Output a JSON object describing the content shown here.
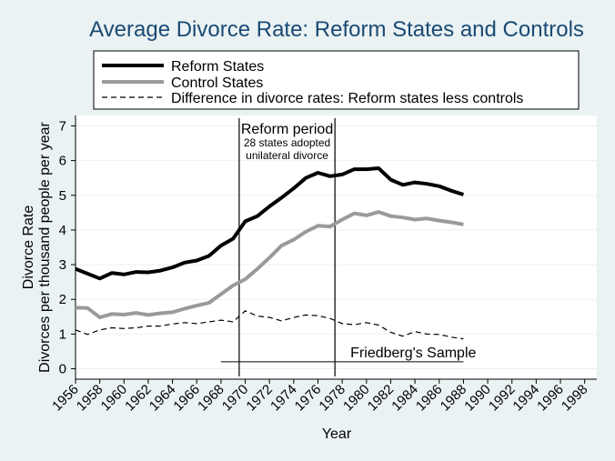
{
  "chart_data": {
    "type": "line",
    "title": "Average Divorce Rate: Reform States and Controls",
    "xlabel": "Year",
    "ylabel_line1": "Divorce Rate",
    "ylabel_line2": "Divorces per thousand people per year",
    "xlim": [
      1956,
      1999
    ],
    "ylim": [
      -0.3,
      7.3
    ],
    "x_ticks": [
      1956,
      1958,
      1960,
      1962,
      1964,
      1966,
      1968,
      1970,
      1972,
      1974,
      1976,
      1978,
      1980,
      1982,
      1984,
      1986,
      1988,
      1990,
      1992,
      1994,
      1996,
      1998
    ],
    "y_ticks": [
      0,
      1,
      2,
      3,
      4,
      5,
      6,
      7
    ],
    "x": [
      1956,
      1957,
      1958,
      1959,
      1960,
      1961,
      1962,
      1963,
      1964,
      1965,
      1966,
      1967,
      1968,
      1969,
      1970,
      1971,
      1972,
      1973,
      1974,
      1975,
      1976,
      1977,
      1978,
      1979,
      1980,
      1981,
      1982,
      1983,
      1984,
      1985,
      1986,
      1987,
      1988
    ],
    "series": [
      {
        "name": "Reform States",
        "style": "thick-black",
        "color": "#000000",
        "values": [
          2.88,
          2.74,
          2.6,
          2.76,
          2.72,
          2.79,
          2.78,
          2.83,
          2.92,
          3.06,
          3.12,
          3.25,
          3.55,
          3.75,
          4.25,
          4.4,
          4.68,
          4.93,
          5.2,
          5.5,
          5.65,
          5.55,
          5.6,
          5.75,
          5.75,
          5.78,
          5.45,
          5.3,
          5.37,
          5.33,
          5.26,
          5.13,
          5.02
        ]
      },
      {
        "name": "Control States",
        "style": "thick-gray",
        "color": "#9a9a9a",
        "values": [
          1.76,
          1.75,
          1.48,
          1.58,
          1.56,
          1.61,
          1.55,
          1.6,
          1.63,
          1.73,
          1.82,
          1.9,
          2.15,
          2.4,
          2.58,
          2.88,
          3.2,
          3.55,
          3.72,
          3.95,
          4.12,
          4.1,
          4.3,
          4.48,
          4.42,
          4.52,
          4.4,
          4.36,
          4.3,
          4.33,
          4.27,
          4.22,
          4.16
        ]
      },
      {
        "name": "Difference in divorce rates: Reform states less controls",
        "style": "dashed",
        "color": "#000000",
        "values": [
          1.12,
          0.99,
          1.12,
          1.18,
          1.16,
          1.18,
          1.23,
          1.23,
          1.29,
          1.33,
          1.3,
          1.35,
          1.4,
          1.35,
          1.67,
          1.52,
          1.48,
          1.38,
          1.48,
          1.55,
          1.53,
          1.45,
          1.3,
          1.27,
          1.33,
          1.26,
          1.05,
          0.94,
          1.07,
          1.0,
          0.99,
          0.91,
          0.86
        ]
      }
    ],
    "reform_period": {
      "start": 1969.5,
      "end": 1977.4,
      "label": "Reform period",
      "sub_line1": "28 states adopted",
      "sub_line2": "unilateral divorce"
    },
    "sample_bar": {
      "start": 1968,
      "end": 1988,
      "y": 0.2,
      "label": "Friedberg's Sample"
    },
    "legend_position": "top"
  }
}
